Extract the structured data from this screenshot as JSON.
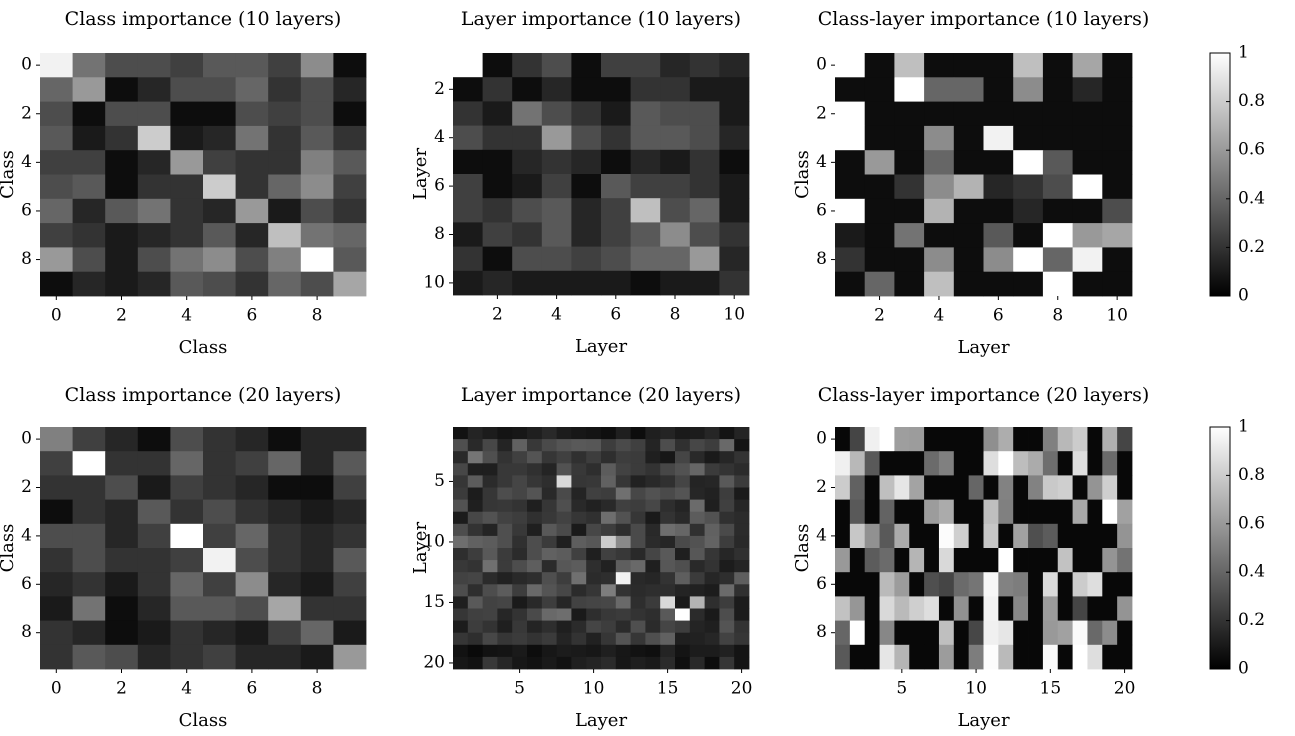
{
  "chart_data": [
    {
      "type": "heatmap",
      "title": "Class importance (10 layers)",
      "xlabel": "Class",
      "ylabel": "Class",
      "rows": 10,
      "cols": 10,
      "x_range": [
        0,
        9
      ],
      "y_range": [
        0,
        9
      ],
      "xticks": [
        "0",
        "2",
        "4",
        "6",
        "8"
      ],
      "yticks": [
        "0",
        "2",
        "4",
        "6",
        "8"
      ],
      "values": [
        [
          0.95,
          0.45,
          0.3,
          0.3,
          0.25,
          0.35,
          0.35,
          0.25,
          0.55,
          0.05
        ],
        [
          0.4,
          0.6,
          0.05,
          0.15,
          0.3,
          0.3,
          0.4,
          0.2,
          0.3,
          0.15
        ],
        [
          0.3,
          0.05,
          0.3,
          0.3,
          0.05,
          0.05,
          0.3,
          0.25,
          0.3,
          0.05
        ],
        [
          0.35,
          0.1,
          0.2,
          0.8,
          0.1,
          0.15,
          0.45,
          0.2,
          0.35,
          0.2
        ],
        [
          0.25,
          0.25,
          0.05,
          0.15,
          0.6,
          0.25,
          0.2,
          0.2,
          0.5,
          0.35
        ],
        [
          0.3,
          0.35,
          0.05,
          0.2,
          0.2,
          0.8,
          0.2,
          0.4,
          0.55,
          0.25
        ],
        [
          0.4,
          0.15,
          0.35,
          0.45,
          0.2,
          0.15,
          0.6,
          0.1,
          0.3,
          0.2
        ],
        [
          0.25,
          0.2,
          0.1,
          0.15,
          0.2,
          0.35,
          0.15,
          0.75,
          0.45,
          0.4
        ],
        [
          0.6,
          0.3,
          0.1,
          0.3,
          0.45,
          0.55,
          0.3,
          0.5,
          1.0,
          0.35
        ],
        [
          0.05,
          0.15,
          0.1,
          0.15,
          0.35,
          0.3,
          0.2,
          0.4,
          0.3,
          0.65
        ]
      ]
    },
    {
      "type": "heatmap",
      "title": "Layer importance (10 layers)",
      "xlabel": "Layer",
      "ylabel": "Layer",
      "rows": 10,
      "cols": 10,
      "x_range": [
        1,
        10
      ],
      "y_range": [
        1,
        10
      ],
      "xticks": [
        "2",
        "4",
        "6",
        "8",
        "10"
      ],
      "yticks": [
        "2",
        "4",
        "6",
        "8",
        "10"
      ],
      "values": [
        [
          1.0,
          0.05,
          0.2,
          0.3,
          0.05,
          0.25,
          0.25,
          0.15,
          0.2,
          0.15
        ],
        [
          0.05,
          0.2,
          0.05,
          0.15,
          0.05,
          0.05,
          0.2,
          0.2,
          0.1,
          0.1
        ],
        [
          0.2,
          0.1,
          0.45,
          0.3,
          0.2,
          0.1,
          0.35,
          0.3,
          0.3,
          0.1
        ],
        [
          0.3,
          0.2,
          0.2,
          0.6,
          0.3,
          0.2,
          0.35,
          0.35,
          0.3,
          0.15
        ],
        [
          0.05,
          0.05,
          0.15,
          0.2,
          0.15,
          0.05,
          0.15,
          0.1,
          0.2,
          0.05
        ],
        [
          0.25,
          0.05,
          0.1,
          0.25,
          0.05,
          0.35,
          0.25,
          0.25,
          0.2,
          0.1
        ],
        [
          0.25,
          0.2,
          0.3,
          0.35,
          0.15,
          0.25,
          0.75,
          0.3,
          0.4,
          0.1
        ],
        [
          0.1,
          0.25,
          0.2,
          0.35,
          0.15,
          0.25,
          0.35,
          0.55,
          0.3,
          0.2
        ],
        [
          0.2,
          0.05,
          0.3,
          0.3,
          0.25,
          0.3,
          0.4,
          0.4,
          0.6,
          0.15
        ],
        [
          0.1,
          0.15,
          0.1,
          0.1,
          0.1,
          0.1,
          0.05,
          0.1,
          0.1,
          0.2
        ]
      ]
    },
    {
      "type": "heatmap",
      "title": "Class-layer importance (10 layers)",
      "xlabel": "Layer",
      "ylabel": "Class",
      "rows": 10,
      "cols": 10,
      "x_range": [
        1,
        10
      ],
      "y_range": [
        0,
        9
      ],
      "xticks": [
        "2",
        "4",
        "6",
        "8",
        "10"
      ],
      "yticks": [
        "0",
        "2",
        "4",
        "6",
        "8"
      ],
      "values": [
        [
          1.0,
          0.05,
          0.75,
          0.05,
          0.05,
          0.05,
          0.75,
          0.05,
          0.65,
          0.05
        ],
        [
          0.05,
          0.05,
          1.0,
          0.4,
          0.4,
          0.05,
          0.55,
          0.05,
          0.15,
          0.05
        ],
        [
          1.0,
          0.05,
          0.05,
          0.05,
          0.05,
          0.05,
          0.05,
          0.05,
          0.05,
          0.05
        ],
        [
          1.0,
          0.05,
          0.05,
          0.55,
          0.05,
          0.95,
          0.05,
          0.05,
          0.05,
          0.05
        ],
        [
          0.05,
          0.6,
          0.05,
          0.4,
          0.05,
          0.05,
          1.0,
          0.35,
          0.05,
          0.05
        ],
        [
          0.05,
          0.05,
          0.2,
          0.55,
          0.7,
          0.15,
          0.2,
          0.3,
          1.0,
          0.05
        ],
        [
          1.0,
          0.05,
          0.05,
          0.7,
          0.05,
          0.05,
          0.15,
          0.05,
          0.05,
          0.3
        ],
        [
          0.1,
          0.05,
          0.45,
          0.05,
          0.05,
          0.35,
          0.05,
          1.0,
          0.6,
          0.65
        ],
        [
          0.2,
          0.05,
          0.05,
          0.55,
          0.05,
          0.55,
          1.0,
          0.4,
          0.95,
          0.05
        ],
        [
          0.05,
          0.4,
          0.05,
          0.75,
          0.05,
          0.05,
          0.05,
          1.0,
          0.05,
          0.05
        ]
      ]
    },
    {
      "type": "heatmap",
      "title": "Class importance (20 layers)",
      "xlabel": "Class",
      "ylabel": "Class",
      "rows": 10,
      "cols": 10,
      "x_range": [
        0,
        9
      ],
      "y_range": [
        0,
        9
      ],
      "xticks": [
        "0",
        "2",
        "4",
        "6",
        "8"
      ],
      "yticks": [
        "0",
        "2",
        "4",
        "6",
        "8"
      ],
      "values": [
        [
          0.5,
          0.25,
          0.15,
          0.05,
          0.3,
          0.2,
          0.15,
          0.05,
          0.15,
          0.15
        ],
        [
          0.25,
          1.0,
          0.2,
          0.2,
          0.4,
          0.2,
          0.25,
          0.4,
          0.15,
          0.35
        ],
        [
          0.2,
          0.2,
          0.3,
          0.1,
          0.25,
          0.2,
          0.15,
          0.05,
          0.05,
          0.25
        ],
        [
          0.05,
          0.2,
          0.15,
          0.35,
          0.2,
          0.3,
          0.2,
          0.15,
          0.1,
          0.15
        ],
        [
          0.3,
          0.3,
          0.15,
          0.25,
          1.0,
          0.25,
          0.4,
          0.2,
          0.15,
          0.2
        ],
        [
          0.2,
          0.3,
          0.2,
          0.2,
          0.25,
          0.95,
          0.3,
          0.2,
          0.15,
          0.35
        ],
        [
          0.15,
          0.2,
          0.1,
          0.2,
          0.4,
          0.25,
          0.55,
          0.15,
          0.1,
          0.25
        ],
        [
          0.1,
          0.45,
          0.05,
          0.15,
          0.35,
          0.35,
          0.3,
          0.65,
          0.2,
          0.2
        ],
        [
          0.2,
          0.15,
          0.05,
          0.1,
          0.2,
          0.15,
          0.1,
          0.25,
          0.4,
          0.1
        ],
        [
          0.2,
          0.35,
          0.3,
          0.15,
          0.2,
          0.25,
          0.15,
          0.15,
          0.1,
          0.6
        ]
      ]
    },
    {
      "type": "heatmap",
      "title": "Layer importance (20 layers)",
      "xlabel": "Layer",
      "ylabel": "Layer",
      "rows": 20,
      "cols": 20,
      "x_range": [
        1,
        20
      ],
      "y_range": [
        1,
        20
      ],
      "xticks": [
        "5",
        "10",
        "15",
        "20"
      ],
      "yticks": [
        "5",
        "10",
        "15",
        "20"
      ]
    },
    {
      "type": "heatmap",
      "title": "Class-layer importance (20 layers)",
      "xlabel": "Layer",
      "ylabel": "Class",
      "rows": 10,
      "cols": 20,
      "x_range": [
        1,
        20
      ],
      "y_range": [
        0,
        9
      ],
      "xticks": [
        "5",
        "10",
        "15",
        "20"
      ],
      "yticks": [
        "0",
        "2",
        "4",
        "6",
        "8"
      ]
    }
  ],
  "colorbar": {
    "ticks": [
      "0",
      "0.2",
      "0.4",
      "0.6",
      "0.8",
      "1"
    ],
    "range": [
      0,
      1
    ],
    "colormap": "gray"
  }
}
